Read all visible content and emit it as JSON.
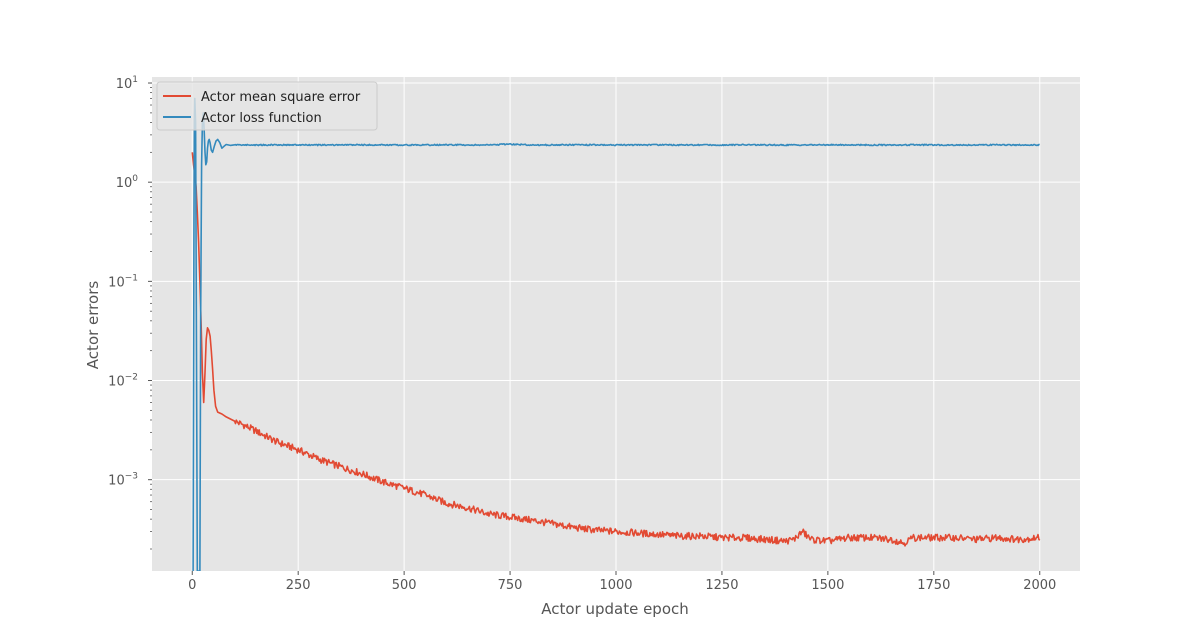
{
  "chart_data": {
    "type": "line",
    "title": "",
    "xlabel": "Actor update epoch",
    "ylabel": "Actor errors",
    "xlim": [
      -95,
      2095
    ],
    "ylim": [
      0.00012,
      11.5
    ],
    "yscale": "log",
    "grid": true,
    "legend_position": "top-left",
    "background": "#e5e5e5",
    "x_ticks": [
      {
        "value": 0,
        "label": "0"
      },
      {
        "value": 250,
        "label": "250"
      },
      {
        "value": 500,
        "label": "500"
      },
      {
        "value": 750,
        "label": "750"
      },
      {
        "value": 1000,
        "label": "1000"
      },
      {
        "value": 1250,
        "label": "1250"
      },
      {
        "value": 1500,
        "label": "1500"
      },
      {
        "value": 1750,
        "label": "1750"
      },
      {
        "value": 2000,
        "label": "2000"
      }
    ],
    "y_ticks": [
      {
        "value": 0.001,
        "base": "10",
        "exp": "−3"
      },
      {
        "value": 0.01,
        "base": "10",
        "exp": "−2"
      },
      {
        "value": 0.1,
        "base": "10",
        "exp": "−1"
      },
      {
        "value": 1,
        "base": "10",
        "exp": "0"
      },
      {
        "value": 10,
        "base": "10",
        "exp": "1"
      }
    ],
    "series": [
      {
        "name": "Actor mean square error",
        "color": "#e24a33",
        "x": [
          0,
          3,
          6,
          9,
          12,
          15,
          18,
          21,
          24,
          27,
          30,
          33,
          36,
          39,
          42,
          45,
          48,
          51,
          55,
          60,
          70,
          80,
          100,
          125,
          150,
          200,
          250,
          300,
          350,
          400,
          450,
          500,
          550,
          600,
          650,
          700,
          750,
          800,
          850,
          900,
          950,
          1000,
          1050,
          1100,
          1150,
          1200,
          1250,
          1300,
          1350,
          1400,
          1420,
          1440,
          1460,
          1500,
          1550,
          1600,
          1650,
          1680,
          1700,
          1750,
          1800,
          1850,
          1900,
          1950,
          2000
        ],
        "y": [
          2.0,
          1.5,
          1.2,
          0.9,
          0.5,
          0.25,
          0.1,
          0.035,
          0.012,
          0.006,
          0.012,
          0.026,
          0.034,
          0.032,
          0.028,
          0.02,
          0.013,
          0.008,
          0.0055,
          0.0048,
          0.0046,
          0.0043,
          0.0039,
          0.0035,
          0.0031,
          0.0024,
          0.002,
          0.0016,
          0.00135,
          0.00115,
          0.00095,
          0.00082,
          0.0007,
          0.00058,
          0.00052,
          0.00045,
          0.00042,
          0.00039,
          0.00036,
          0.00033,
          0.00031,
          0.0003,
          0.00029,
          0.00028,
          0.00027,
          0.00027,
          0.00026,
          0.00026,
          0.00025,
          0.00024,
          0.00025,
          0.0003,
          0.00025,
          0.00024,
          0.00026,
          0.00026,
          0.00025,
          0.00023,
          0.00026,
          0.00026,
          0.00026,
          0.00025,
          0.00026,
          0.00025,
          0.00026
        ]
      },
      {
        "name": "Actor loss function",
        "color": "#348abd",
        "x": [
          0,
          2,
          4,
          5,
          6,
          8,
          10,
          12,
          14,
          16,
          18,
          20,
          22,
          24,
          26,
          28,
          30,
          32,
          34,
          36,
          38,
          40,
          42,
          45,
          48,
          52,
          56,
          60,
          65,
          70,
          75,
          80,
          90,
          100,
          150,
          200,
          300,
          400,
          500,
          600,
          700,
          750,
          800,
          900,
          1000,
          1100,
          1200,
          1300,
          1400,
          1500,
          1600,
          1700,
          1800,
          1900,
          2000
        ],
        "y": [
          0.00012,
          0.00012,
          0.5,
          4.0,
          7.0,
          4.0,
          0.02,
          0.00012,
          0.00012,
          0.00012,
          0.00012,
          0.05,
          1.5,
          4.0,
          5.0,
          3.5,
          2.0,
          1.5,
          1.6,
          2.2,
          2.6,
          2.7,
          2.5,
          2.1,
          2.0,
          2.3,
          2.6,
          2.7,
          2.5,
          2.2,
          2.3,
          2.4,
          2.35,
          2.38,
          2.37,
          2.38,
          2.37,
          2.38,
          2.37,
          2.38,
          2.37,
          2.42,
          2.37,
          2.38,
          2.37,
          2.38,
          2.37,
          2.38,
          2.37,
          2.38,
          2.37,
          2.38,
          2.37,
          2.38,
          2.37
        ]
      }
    ]
  }
}
